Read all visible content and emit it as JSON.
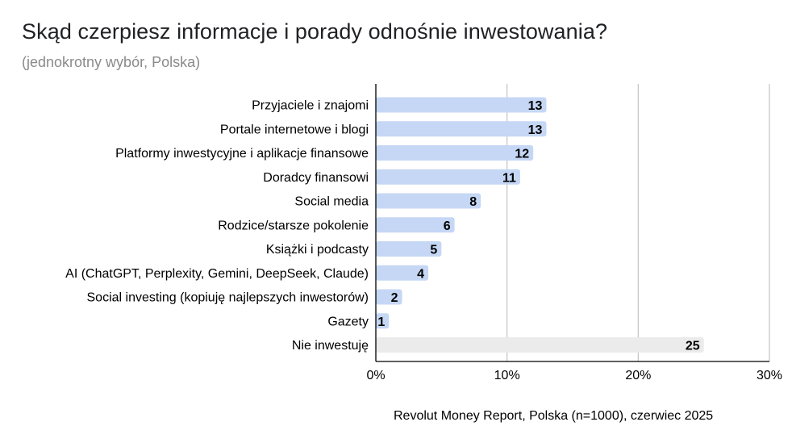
{
  "title": "Skąd czerpiesz informacje i porady odnośnie inwestowania?",
  "subtitle": "(jednokrotny wybór, Polska)",
  "source": "Revolut Money Report, Polska (n=1000), czerwiec 2025",
  "chart_data": {
    "type": "bar",
    "orientation": "horizontal",
    "categories": [
      "Przyjaciele i znajomi",
      "Portale internetowe i blogi",
      "Platformy inwestycyjne i aplikacje finansowe",
      "Doradcy finansowi",
      "Social media",
      "Rodzice/starsze pokolenie",
      "Książki i podcasty",
      "AI (ChatGPT, Perplexity, Gemini, DeepSeek, Claude)",
      "Social investing (kopiuję najlepszych inwestorów)",
      "Gazety",
      "Nie inwestuję"
    ],
    "values": [
      13,
      13,
      12,
      11,
      8,
      6,
      5,
      4,
      2,
      1,
      25
    ],
    "data_labels": [
      "13",
      "13",
      "12",
      "11",
      "8",
      "6",
      "5",
      "4",
      "2",
      "1",
      "25"
    ],
    "xlim": [
      0,
      30
    ],
    "x_ticks": [
      0,
      10,
      20,
      30
    ],
    "x_tick_labels": [
      "0%",
      "10%",
      "20%",
      "30%"
    ],
    "grid": "vertical",
    "legend": "none",
    "colors": {
      "bar": "#c5d7f5",
      "highlight_bar": "#ebebeb",
      "grid": "#c8c8c8"
    },
    "highlighted_category": "Nie inwestuję"
  }
}
